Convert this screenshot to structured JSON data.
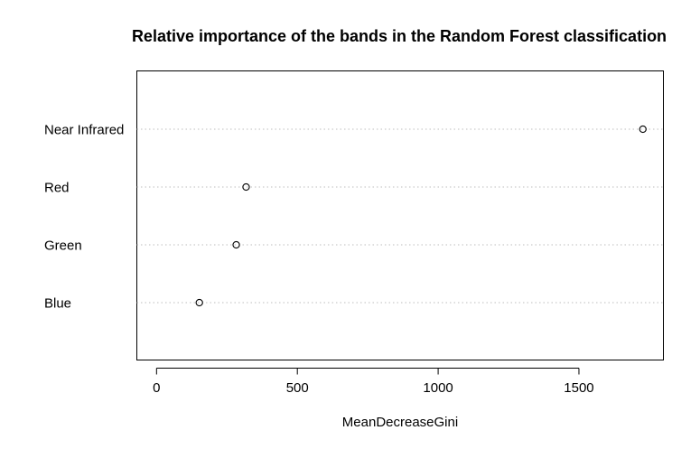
{
  "chart_data": {
    "type": "scatter",
    "title": "Relative importance of the bands in the Random Forest classification",
    "xlabel": "MeanDecreaseGini",
    "ylabel": "",
    "categories": [
      "Near Infrared",
      "Red",
      "Green",
      "Blue"
    ],
    "values": [
      1727,
      318,
      283,
      152
    ],
    "xlim": [
      -70,
      1800
    ],
    "xticks": [
      0,
      500,
      1000,
      1500
    ],
    "grid": "horizontal dotted",
    "marker": "open circle",
    "colors": {
      "marker": "#000000",
      "grid": "#bebebe",
      "axis": "#000000"
    }
  }
}
